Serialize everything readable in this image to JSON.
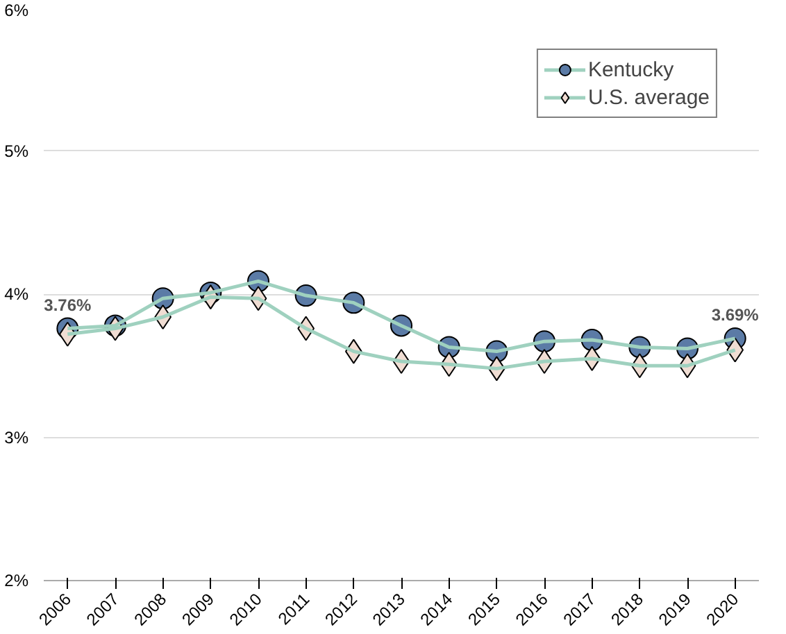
{
  "chart_data": {
    "type": "line",
    "categories": [
      "2006",
      "2007",
      "2008",
      "2009",
      "2010",
      "2011",
      "2012",
      "2013",
      "2014",
      "2015",
      "2016",
      "2017",
      "2018",
      "2019",
      "2020"
    ],
    "series": [
      {
        "name": "Kentucky",
        "color": "#9fd1bf",
        "colors": [
          "#5b7ba6",
          "#5b7ba6",
          "#5b7ba6",
          "#5b7ba6",
          "#5b7ba6",
          "#5b7ba6",
          "#5b7ba6",
          "#5b7ba6",
          "#5b7ba6",
          "#5b7ba6",
          "#5b7ba6",
          "#5b7ba6",
          "#5b7ba6",
          "#5b7ba6",
          "#5b7ba6"
        ],
        "marker": "circle",
        "values": [
          3.76,
          3.78,
          3.97,
          4.01,
          4.09,
          3.99,
          3.94,
          3.78,
          3.63,
          3.6,
          3.67,
          3.68,
          3.63,
          3.62,
          3.69
        ],
        "value_labels": [
          "3.76%",
          null,
          null,
          null,
          null,
          null,
          null,
          null,
          null,
          null,
          null,
          null,
          null,
          null,
          "3.69%"
        ]
      },
      {
        "name": "U.S. average",
        "color": "#9fd1bf",
        "colors": [
          "#f0ddd3",
          "#f0ddd3",
          "#f0ddd3",
          "#f0ddd3",
          "#f0ddd3",
          "#f0ddd3",
          "#f0ddd3",
          "#f0ddd3",
          "#f0ddd3",
          "#f0ddd3",
          "#f0ddd3",
          "#f0ddd3",
          "#f0ddd3",
          "#f0ddd3",
          "#f0ddd3"
        ],
        "marker": "diamond",
        "values": [
          3.72,
          3.76,
          3.84,
          3.98,
          3.97,
          3.76,
          3.6,
          3.53,
          3.51,
          3.48,
          3.53,
          3.55,
          3.5,
          3.5,
          3.61
        ]
      }
    ],
    "ylim": [
      2,
      6
    ],
    "yticks": [
      {
        "value": 2,
        "label": "2%"
      },
      {
        "value": 3,
        "label": "3%"
      },
      {
        "value": 4,
        "label": "4%"
      },
      {
        "value": 5,
        "label": "5%"
      },
      {
        "value": 6,
        "label": "6%"
      }
    ],
    "grid": "y",
    "legend": "top right",
    "line_style": "solid"
  }
}
